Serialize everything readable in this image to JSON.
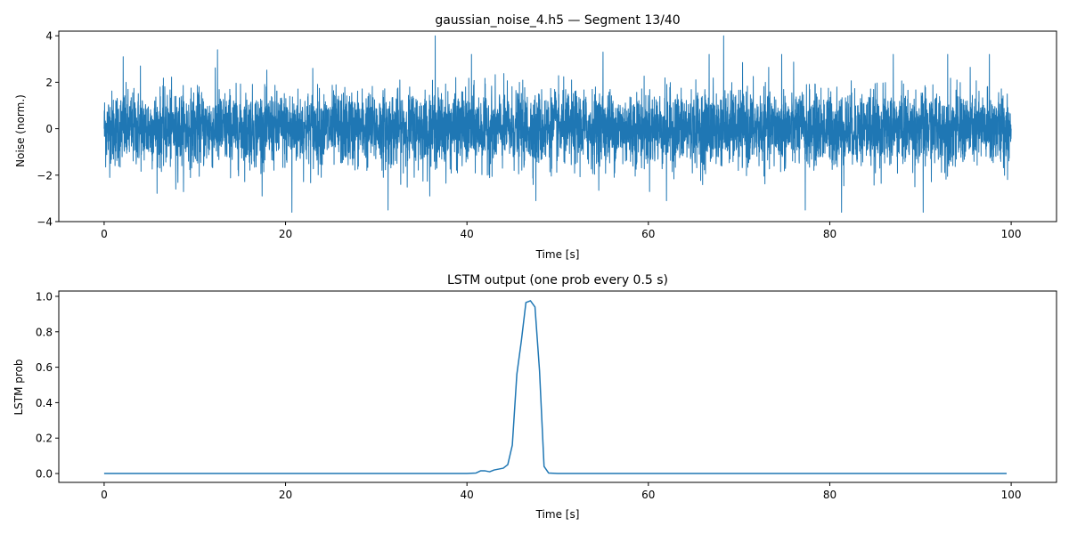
{
  "chart_data": [
    {
      "type": "line",
      "title": "gaussian_noise_4.h5 — Segment 13/40",
      "xlabel": "Time [s]",
      "ylabel": "Noise (norm.)",
      "xlim": [
        -5,
        105
      ],
      "ylim": [
        -4,
        4.2
      ],
      "x_ticks": [
        0,
        20,
        40,
        60,
        80,
        100
      ],
      "y_ticks": [
        -4,
        -2,
        0,
        2,
        4
      ],
      "x_tick_labels": [
        "0",
        "20",
        "40",
        "60",
        "80",
        "100"
      ],
      "y_tick_labels": [
        "−4",
        "−2",
        "0",
        "2",
        "4"
      ],
      "grid": false,
      "series": [
        {
          "color": "#1f77b4",
          "x_start": 0,
          "x_end": 100,
          "description_of_values": "dense gaussian noise, mostly within ±2, peaks near ±3.5",
          "x": [
            0,
            2.1,
            4,
            7.9,
            12.5,
            20.7,
            23,
            31.3,
            36.5,
            40.5,
            47.6,
            55,
            62,
            66.7,
            68.3,
            74.7,
            77.3,
            81.3,
            87,
            90.3,
            93,
            97.6,
            100
          ],
          "values": [
            0,
            3.1,
            2.7,
            -2.6,
            3.4,
            -3.6,
            2.6,
            -3.5,
            4.0,
            3.2,
            -3.1,
            3.3,
            -3.1,
            3.2,
            4.0,
            3.2,
            -3.5,
            -3.6,
            3.2,
            -3.6,
            3.2,
            3.2,
            0
          ]
        }
      ]
    },
    {
      "type": "line",
      "title": "LSTM output (one prob every 0.5 s)",
      "xlabel": "Time [s]",
      "ylabel": "LSTM prob",
      "xlim": [
        -5,
        105
      ],
      "ylim": [
        -0.05,
        1.03
      ],
      "x_ticks": [
        0,
        20,
        40,
        60,
        80,
        100
      ],
      "y_ticks": [
        0.0,
        0.2,
        0.4,
        0.6,
        0.8,
        1.0
      ],
      "x_tick_labels": [
        "0",
        "20",
        "40",
        "60",
        "80",
        "100"
      ],
      "y_tick_labels": [
        "0.0",
        "0.2",
        "0.4",
        "0.6",
        "0.8",
        "1.0"
      ],
      "grid": false,
      "series": [
        {
          "color": "#1f77b4",
          "x": [
            0,
            10,
            20,
            30,
            40,
            41,
            41.5,
            42,
            42.5,
            43,
            43.5,
            44,
            44.5,
            45,
            45.5,
            46,
            46.5,
            47,
            47.5,
            48,
            48.5,
            49,
            50,
            60,
            70,
            80,
            90,
            99.5
          ],
          "values": [
            0,
            0,
            0,
            0,
            0,
            0.003,
            0.015,
            0.015,
            0.01,
            0.02,
            0.025,
            0.03,
            0.05,
            0.16,
            0.56,
            0.75,
            0.965,
            0.975,
            0.94,
            0.58,
            0.04,
            0.003,
            0,
            0,
            0,
            0,
            0,
            0
          ]
        }
      ]
    }
  ]
}
